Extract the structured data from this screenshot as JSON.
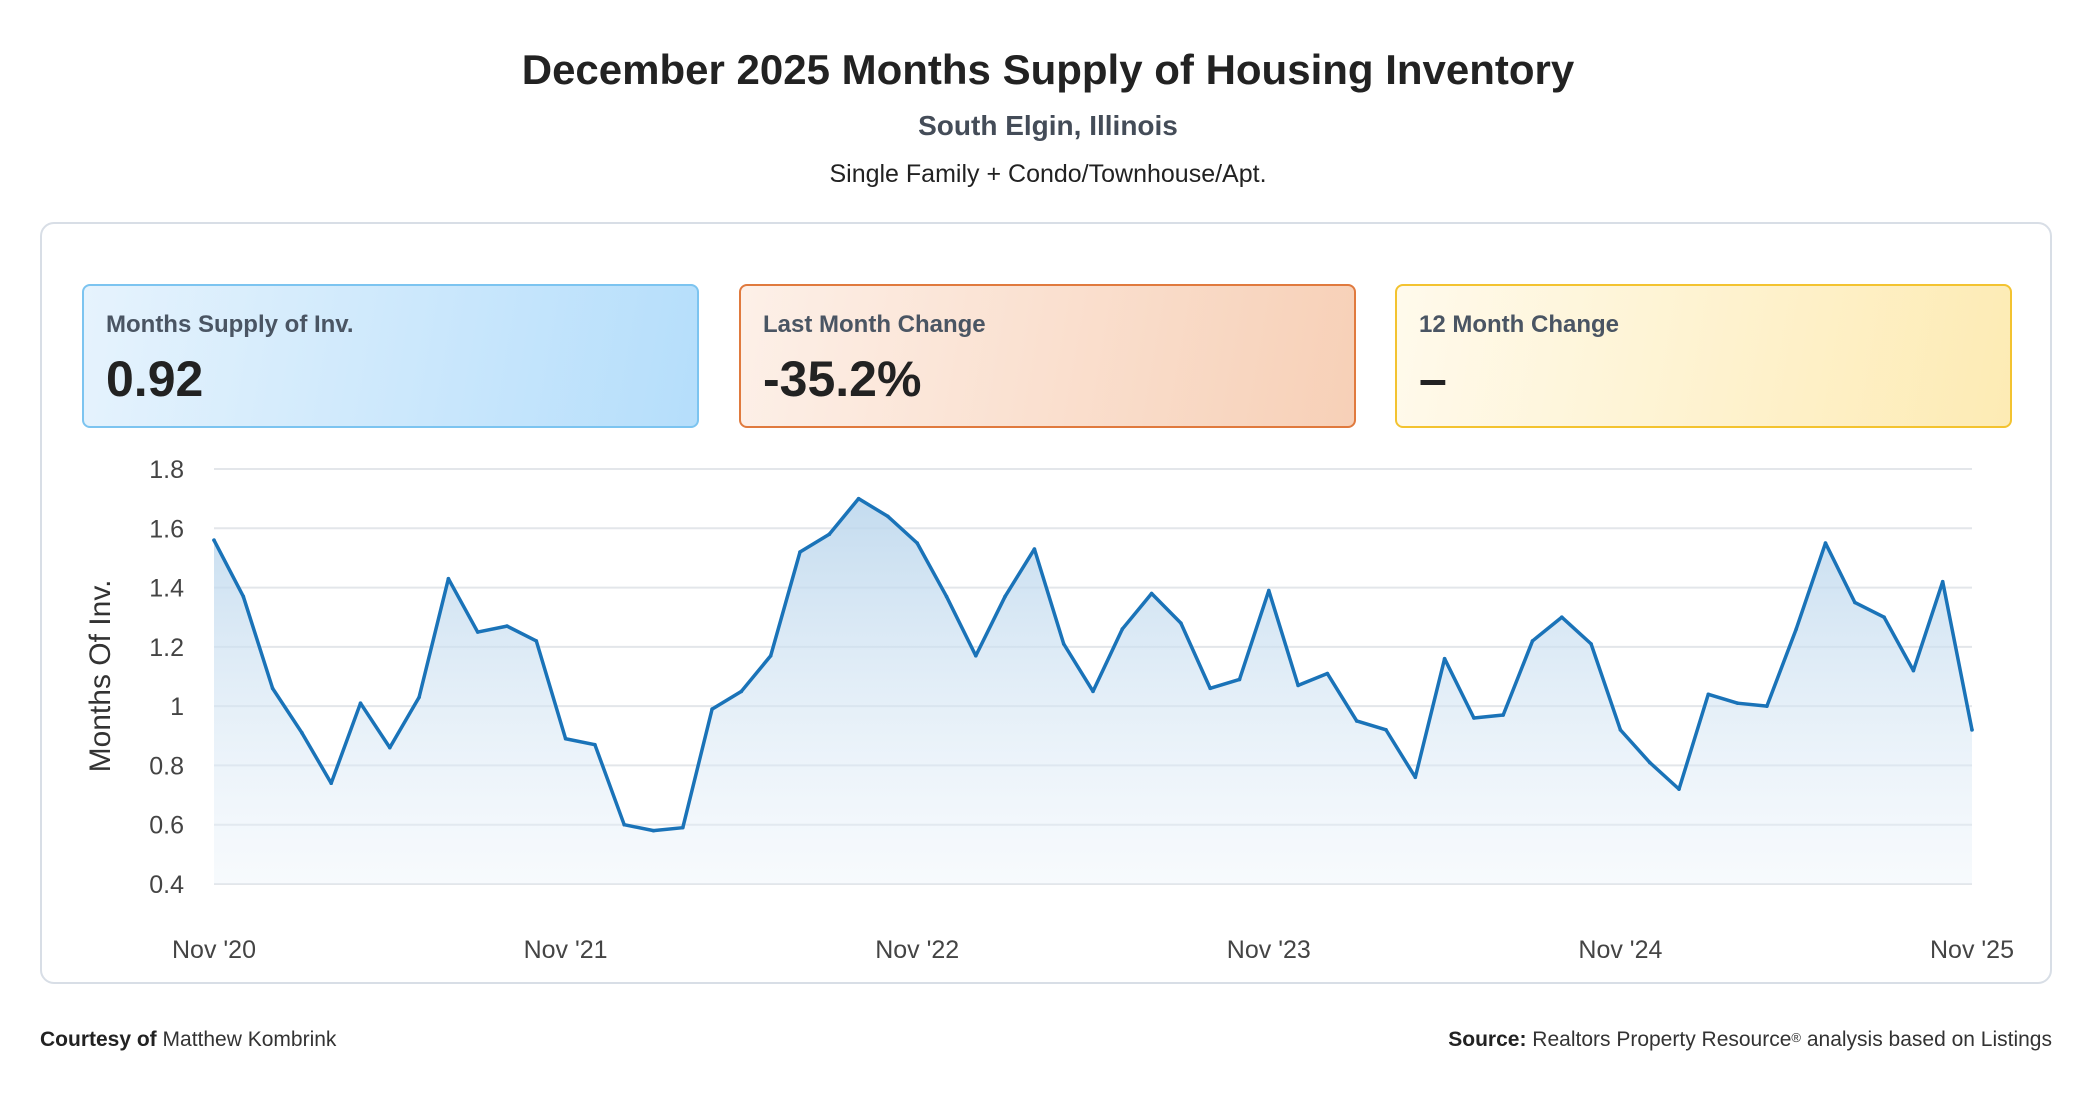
{
  "header": {
    "title": "December 2025 Months Supply of Housing Inventory",
    "location": "South Elgin, Illinois",
    "property_type": "Single Family + Condo/Townhouse/Apt."
  },
  "cards": [
    {
      "label": "Months Supply of Inv.",
      "value": "0.92",
      "accent": "#7cc4f0"
    },
    {
      "label": "Last Month Change",
      "value": "-35.2%",
      "accent": "#e07a3e"
    },
    {
      "label": "12 Month Change",
      "value": "–",
      "accent": "#f3c330"
    }
  ],
  "footer": {
    "courtesy_label": "Courtesy of",
    "courtesy_name": "Matthew Kombrink",
    "source_label": "Source:",
    "source_text_a": "Realtors Property Resource",
    "source_mark": "®",
    "source_text_b": " analysis based on Listings"
  },
  "colors": {
    "line": "#1a73b8",
    "grid": "#e3e6ea"
  },
  "chart_data": {
    "type": "area",
    "ylabel": "Months Of Inv.",
    "xlabel": "",
    "ylim": [
      0.4,
      1.8
    ],
    "yticks": [
      0.4,
      0.6,
      0.8,
      1,
      1.2,
      1.4,
      1.6,
      1.8
    ],
    "ytick_labels": [
      "0.4",
      "0.6",
      "0.8",
      "1",
      "1.2",
      "1.4",
      "1.6",
      "1.8"
    ],
    "xtick_labels": [
      "Nov '20",
      "Nov '21",
      "Nov '22",
      "Nov '23",
      "Nov '24",
      "Nov '25"
    ],
    "xtick_index": [
      0,
      12,
      24,
      36,
      48,
      60
    ],
    "grid": true,
    "legend": "none",
    "series": [
      {
        "values": [
          1.56,
          1.37,
          1.06,
          0.91,
          0.74,
          1.01,
          0.86,
          1.03,
          1.43,
          1.25,
          1.27,
          1.22,
          0.89,
          0.87,
          0.6,
          0.58,
          0.59,
          0.99,
          1.05,
          1.17,
          1.52,
          1.58,
          1.7,
          1.64,
          1.55,
          1.37,
          1.17,
          1.37,
          1.53,
          1.21,
          1.05,
          1.26,
          1.38,
          1.28,
          1.06,
          1.09,
          1.39,
          1.07,
          1.11,
          0.95,
          0.92,
          0.76,
          1.16,
          0.96,
          0.97,
          1.22,
          1.3,
          1.21,
          0.92,
          0.81,
          0.72,
          1.04,
          1.01,
          1.0,
          1.26,
          1.55,
          1.35,
          1.3,
          1.12,
          1.42,
          0.92
        ]
      }
    ]
  }
}
